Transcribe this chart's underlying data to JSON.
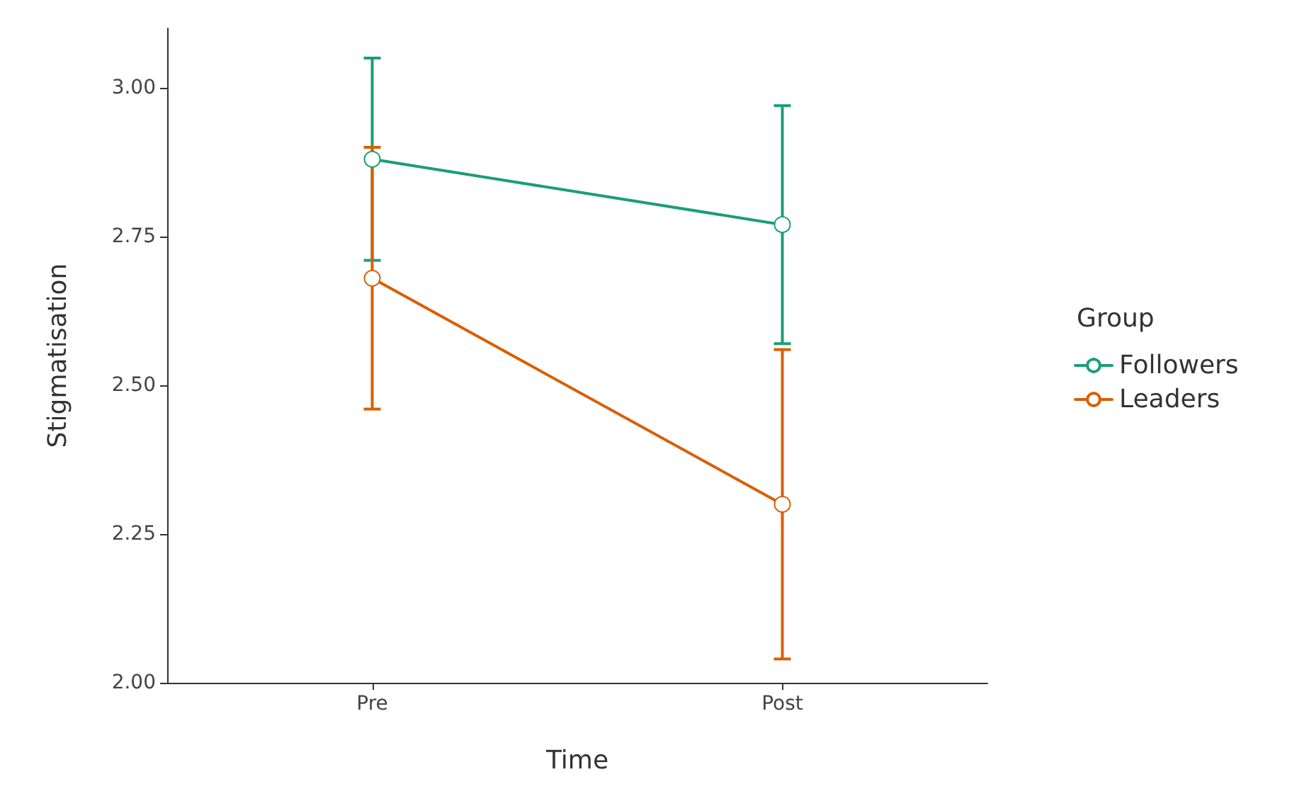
{
  "chart_data": {
    "type": "line",
    "xlabel": "Time",
    "ylabel": "Stigmatisation",
    "legend_title": "Group",
    "categories": [
      "Pre",
      "Post"
    ],
    "series": [
      {
        "name": "Followers",
        "color": "#1b9e77",
        "values": [
          2.88,
          2.77
        ],
        "errors": [
          [
            2.71,
            3.05
          ],
          [
            2.57,
            2.97
          ]
        ]
      },
      {
        "name": "Leaders",
        "color": "#d95f02",
        "values": [
          2.68,
          2.3
        ],
        "errors": [
          [
            2.46,
            2.9
          ],
          [
            2.04,
            2.56
          ]
        ]
      }
    ],
    "ylim": [
      2.0,
      3.1
    ],
    "yticks": [
      {
        "value": 2.0,
        "label": "2.00"
      },
      {
        "value": 2.25,
        "label": "2.25"
      },
      {
        "value": 2.5,
        "label": "2.50"
      },
      {
        "value": 2.75,
        "label": "2.75"
      },
      {
        "value": 3.0,
        "label": "3.00"
      }
    ],
    "grid": false,
    "legend": "right",
    "marker": "circle",
    "line_style": "solid"
  }
}
